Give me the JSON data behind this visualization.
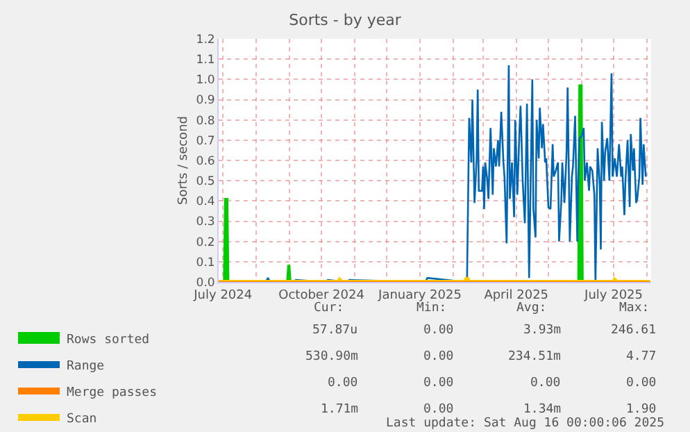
{
  "chart_data": {
    "type": "line",
    "title": "Sorts - by year",
    "ylabel": "Sorts / second",
    "xlim": [
      "2024-06-27",
      "2025-08-05"
    ],
    "xticks": [
      {
        "value": "2024-07-01",
        "label": "July 2024"
      },
      {
        "value": "2024-08-01",
        "label": null
      },
      {
        "value": "2024-09-01",
        "label": null
      },
      {
        "value": "2024-10-01",
        "label": "October 2024"
      },
      {
        "value": "2024-11-01",
        "label": null
      },
      {
        "value": "2024-12-01",
        "label": null
      },
      {
        "value": "2025-01-01",
        "label": "January 2025"
      },
      {
        "value": "2025-02-01",
        "label": null
      },
      {
        "value": "2025-03-01",
        "label": null
      },
      {
        "value": "2025-04-01",
        "label": "April 2025"
      },
      {
        "value": "2025-05-01",
        "label": null
      },
      {
        "value": "2025-06-01",
        "label": null
      },
      {
        "value": "2025-07-01",
        "label": "July 2025"
      },
      {
        "value": "2025-08-01",
        "label": null
      }
    ],
    "ylim": [
      0,
      1.2
    ],
    "yticks": [
      {
        "value": 0,
        "label": "0.0"
      },
      {
        "value": 0.1,
        "label": "0.1"
      },
      {
        "value": 0.2,
        "label": "0.2"
      },
      {
        "value": 0.3,
        "label": "0.3"
      },
      {
        "value": 0.4,
        "label": "0.4"
      },
      {
        "value": 0.5,
        "label": "0.5"
      },
      {
        "value": 0.6,
        "label": "0.6"
      },
      {
        "value": 0.7,
        "label": "0.7"
      },
      {
        "value": 0.8,
        "label": "0.8"
      },
      {
        "value": 0.9,
        "label": "0.9"
      },
      {
        "value": 1.0,
        "label": "1.0"
      },
      {
        "value": 1.1,
        "label": "1.1"
      },
      {
        "value": 1.2,
        "label": "1.2"
      }
    ],
    "grid": true,
    "legend": "bottom",
    "series": [
      {
        "name": "Rows sorted",
        "color": "#00cc00",
        "type": "area",
        "x": [
          "2024-06-27",
          "2024-07-02",
          "2024-07-03",
          "2024-07-05",
          "2024-07-06",
          "2024-08-30",
          "2024-08-31",
          "2024-09-01",
          "2024-09-02",
          "2025-05-29",
          "2025-05-30",
          "2025-06-01",
          "2025-06-02",
          "2025-08-04"
        ],
        "values": [
          0,
          0,
          0.41,
          0.41,
          0,
          0,
          0.08,
          0.08,
          0,
          0,
          0.97,
          0.97,
          0,
          0
        ]
      },
      {
        "name": "Range",
        "color": "#0066b3",
        "x": [
          "2024-06-27",
          "2024-08-10",
          "2024-08-12",
          "2024-08-14",
          "2024-09-05",
          "2024-09-07",
          "2024-10-05",
          "2024-10-07",
          "2024-10-25",
          "2024-10-27",
          "2025-01-06",
          "2025-01-08",
          "2025-02-13",
          "2025-02-14",
          "2025-02-16",
          "2025-02-18",
          "2025-02-19",
          "2025-02-21",
          "2025-02-23",
          "2025-02-24",
          "2025-02-25",
          "2025-02-28",
          "2025-03-01",
          "2025-03-02",
          "2025-03-03",
          "2025-03-05",
          "2025-03-06",
          "2025-03-08",
          "2025-03-10",
          "2025-03-11",
          "2025-03-13",
          "2025-03-15",
          "2025-03-16",
          "2025-03-18",
          "2025-03-20",
          "2025-03-21",
          "2025-03-23",
          "2025-03-25",
          "2025-03-26",
          "2025-03-28",
          "2025-03-30",
          "2025-03-31",
          "2025-04-02",
          "2025-04-04",
          "2025-04-05",
          "2025-04-07",
          "2025-04-09",
          "2025-04-11",
          "2025-04-13",
          "2025-04-16",
          "2025-04-17",
          "2025-04-19",
          "2025-04-20",
          "2025-04-22",
          "2025-04-23",
          "2025-04-25",
          "2025-04-26",
          "2025-04-28",
          "2025-04-29",
          "2025-05-01",
          "2025-05-03",
          "2025-05-05",
          "2025-05-06",
          "2025-05-08",
          "2025-05-10",
          "2025-05-11",
          "2025-05-13",
          "2025-05-14",
          "2025-05-16",
          "2025-05-18",
          "2025-05-19",
          "2025-05-21",
          "2025-05-23",
          "2025-05-24",
          "2025-05-26",
          "2025-05-28",
          "2025-05-29",
          "2025-05-30",
          "2025-06-01",
          "2025-06-03",
          "2025-06-04",
          "2025-06-06",
          "2025-06-08",
          "2025-06-09",
          "2025-06-11",
          "2025-06-13",
          "2025-06-14",
          "2025-06-16",
          "2025-06-18",
          "2025-06-19",
          "2025-06-20",
          "2025-06-22",
          "2025-06-23",
          "2025-06-25",
          "2025-06-27",
          "2025-06-29",
          "2025-06-30",
          "2025-07-02",
          "2025-07-04",
          "2025-07-06",
          "2025-07-08",
          "2025-07-09",
          "2025-07-11",
          "2025-07-12",
          "2025-07-14",
          "2025-07-16",
          "2025-07-17",
          "2025-07-19",
          "2025-07-20",
          "2025-07-22",
          "2025-07-23",
          "2025-07-25",
          "2025-07-26",
          "2025-07-28",
          "2025-07-29",
          "2025-07-31"
        ],
        "values": [
          0,
          0,
          0.02,
          0,
          0,
          0.01,
          0,
          0.01,
          0,
          0.01,
          0,
          0.02,
          0,
          0.01,
          0.81,
          0.59,
          0.9,
          0.39,
          0.61,
          0.95,
          0.45,
          0.45,
          0.57,
          0.36,
          0.59,
          0.5,
          0.41,
          0.76,
          0.43,
          0.66,
          0.57,
          0.7,
          0.57,
          0.84,
          0.59,
          0.52,
          0.19,
          1.07,
          0.41,
          0.59,
          0.32,
          0.8,
          0.43,
          0.75,
          0.87,
          0.5,
          0.29,
          0.88,
          0.02,
          1.0,
          0.36,
          0.22,
          0.8,
          0.61,
          0.86,
          0.66,
          0.78,
          0.59,
          0.61,
          0.37,
          0.36,
          0.68,
          0.52,
          0.55,
          0.59,
          0.2,
          0.39,
          0.59,
          0.39,
          0.64,
          0.96,
          0.2,
          0.52,
          0.57,
          0.82,
          0.2,
          0.52,
          0.71,
          0.72,
          0.76,
          0.5,
          0.59,
          0.45,
          0.57,
          0.55,
          0.43,
          0,
          0.66,
          0.48,
          0.16,
          0.79,
          0.5,
          0.64,
          0.71,
          0.5,
          1.03,
          0.52,
          0.61,
          0.52,
          0.68,
          0.52,
          0.57,
          0.33,
          0.5,
          0.7,
          0.37,
          0.73,
          0.55,
          0.66,
          0.39,
          0.41,
          0.52,
          0.81,
          0.48,
          0.68,
          0.52
        ]
      },
      {
        "name": "Merge passes",
        "color": "#ff7f00",
        "x": [
          "2024-06-27",
          "2025-08-04"
        ],
        "values": [
          0,
          0
        ]
      },
      {
        "name": "Scan",
        "color": "#ffcc00",
        "x": [
          "2024-06-27",
          "2024-10-17",
          "2024-10-18",
          "2024-10-20",
          "2025-02-12",
          "2025-02-14",
          "2025-02-16",
          "2025-07-01",
          "2025-07-02",
          "2025-07-04",
          "2025-08-04"
        ],
        "values": [
          0,
          0,
          0.01,
          0,
          0,
          0.02,
          0,
          0,
          0.01,
          0,
          0
        ]
      }
    ],
    "annotations": [
      "Cur:",
      "Min:",
      "Avg:",
      "Max:",
      "57.87u",
      "0.00",
      "3.93m",
      "246.61",
      "530.90m",
      "0.00",
      "234.51m",
      "4.77",
      "0.00",
      "0.00",
      "0.00",
      "0.00",
      "1.71m",
      "0.00",
      "1.34m",
      "1.90",
      "Last update: Sat Aug 16 00:00:06 2025"
    ]
  }
}
